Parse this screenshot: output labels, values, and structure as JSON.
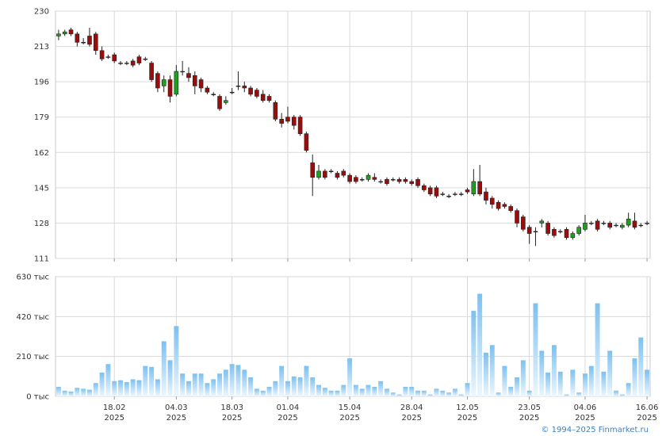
{
  "chart_data": [
    {
      "type": "candlestick",
      "up_color": "#1f9e1f",
      "down_color": "#9b0d0d",
      "grid": true,
      "xlim": [
        -0.5,
        95.5
      ],
      "ylim": [
        111,
        230
      ],
      "yticks": [
        111,
        128,
        145,
        162,
        179,
        196,
        213,
        230
      ],
      "open": [
        218,
        219,
        221,
        219,
        215,
        218,
        219,
        211,
        208,
        209,
        205,
        205,
        206,
        208,
        207,
        205,
        200,
        194,
        197,
        190,
        201,
        200,
        199,
        197,
        193,
        190,
        189,
        186,
        191,
        194,
        194,
        193,
        192,
        190,
        189,
        186,
        178,
        179,
        179,
        179,
        171,
        157,
        150,
        153,
        153,
        152,
        153,
        151,
        150,
        149,
        149,
        150,
        148,
        149,
        149,
        149,
        149,
        148,
        149,
        146,
        145,
        145,
        142,
        141,
        142,
        142,
        144,
        142,
        148,
        143,
        140,
        138,
        137,
        136,
        134,
        131,
        126,
        124,
        128,
        128,
        125,
        124,
        125,
        121,
        123,
        125,
        128,
        129,
        128,
        128,
        127,
        126,
        127,
        129,
        127,
        128
      ],
      "high": [
        221,
        221,
        222,
        220,
        217,
        222,
        220,
        213,
        209,
        210,
        206,
        206,
        207,
        209,
        208,
        206,
        201,
        199,
        199,
        204,
        206,
        203,
        201,
        198,
        194,
        191,
        190,
        189,
        193,
        201,
        196,
        194,
        193,
        192,
        190,
        187,
        181,
        184,
        180,
        180,
        172,
        161,
        156,
        154,
        154,
        153,
        154,
        152,
        151,
        150,
        152,
        152,
        149,
        150,
        150,
        150,
        150,
        149,
        150,
        147,
        146,
        146,
        143,
        142,
        143,
        143,
        145,
        154,
        156,
        145,
        141,
        139,
        138,
        137,
        135,
        132,
        127,
        126,
        130,
        129,
        126,
        125,
        126,
        124,
        127,
        132,
        129,
        130,
        129,
        129,
        128,
        128,
        133,
        133,
        128,
        129
      ],
      "low": [
        216,
        218,
        218,
        213,
        214,
        213,
        209,
        206,
        207,
        205,
        204,
        204,
        203,
        204,
        206,
        196,
        191,
        191,
        186,
        189,
        199,
        196,
        190,
        191,
        190,
        189,
        182,
        185,
        190,
        192,
        191,
        189,
        188,
        186,
        186,
        177,
        174,
        176,
        173,
        170,
        162,
        141,
        149,
        149,
        152,
        149,
        150,
        147,
        147,
        148,
        148,
        148,
        147,
        146,
        148,
        147,
        147,
        146,
        145,
        143,
        141,
        140,
        141,
        140,
        141,
        141,
        142,
        141,
        141,
        137,
        135,
        134,
        135,
        133,
        126,
        124,
        118,
        117,
        126,
        122,
        121,
        123,
        120,
        120,
        122,
        124,
        127,
        124,
        127,
        125,
        126,
        125,
        126,
        125,
        126,
        127
      ],
      "close": [
        219,
        220,
        219,
        215,
        215,
        214,
        211,
        207,
        208,
        206,
        205,
        205,
        204,
        205,
        207,
        197,
        193,
        197,
        189,
        201,
        201,
        198,
        194,
        193,
        191,
        190,
        183,
        187,
        191,
        194,
        193,
        190,
        189,
        187,
        187,
        178,
        176,
        177,
        175,
        171,
        163,
        150,
        153,
        150,
        153,
        150,
        151,
        148,
        148,
        149,
        151,
        149,
        148,
        147,
        149,
        148,
        148,
        147,
        146,
        144,
        142,
        141,
        142,
        141,
        142,
        142,
        143,
        148,
        142,
        139,
        137,
        135,
        136,
        134,
        128,
        125,
        123,
        124,
        129,
        123,
        122,
        124,
        121,
        123,
        126,
        128,
        128,
        125,
        128,
        126,
        127,
        127,
        130,
        126,
        127,
        128
      ]
    },
    {
      "type": "bar",
      "color": "#7dc0ef",
      "grid": true,
      "xlim": [
        -0.5,
        95.5
      ],
      "ylim": [
        0,
        630
      ],
      "yticks": [
        {
          "value": 0,
          "label": "0 тыс"
        },
        {
          "value": 210,
          "label": "210 тыс"
        },
        {
          "value": 420,
          "label": "420 тыс"
        },
        {
          "value": 630,
          "label": "630 тыс"
        }
      ],
      "xticks": [
        {
          "value": 9,
          "label": "18.02\n2025"
        },
        {
          "value": 19,
          "label": "04.03\n2025"
        },
        {
          "value": 28,
          "label": "18.03\n2025"
        },
        {
          "value": 37,
          "label": "01.04\n2025"
        },
        {
          "value": 47,
          "label": "15.04\n2025"
        },
        {
          "value": 57,
          "label": "28.04\n2025"
        },
        {
          "value": 66,
          "label": "12.05\n2025"
        },
        {
          "value": 76,
          "label": "23.05\n2025"
        },
        {
          "value": 85,
          "label": "04.06\n2025"
        },
        {
          "value": 95,
          "label": "16.06\n2025"
        }
      ],
      "values": [
        50,
        30,
        25,
        45,
        40,
        35,
        70,
        125,
        170,
        80,
        85,
        75,
        90,
        85,
        160,
        155,
        90,
        290,
        190,
        370,
        120,
        80,
        120,
        120,
        70,
        90,
        120,
        140,
        170,
        165,
        140,
        100,
        40,
        30,
        50,
        80,
        160,
        80,
        105,
        100,
        160,
        100,
        60,
        45,
        30,
        30,
        60,
        200,
        60,
        40,
        60,
        50,
        80,
        40,
        20,
        10,
        50,
        50,
        30,
        30,
        10,
        40,
        30,
        20,
        40,
        10,
        70,
        450,
        540,
        230,
        270,
        20,
        160,
        50,
        100,
        190,
        30,
        490,
        240,
        125,
        270,
        130,
        10,
        140,
        20,
        120,
        160,
        490,
        130,
        240,
        30,
        10,
        70,
        200,
        310,
        140
      ]
    }
  ],
  "footer": "© 1994–2025 Finmarket.ru"
}
